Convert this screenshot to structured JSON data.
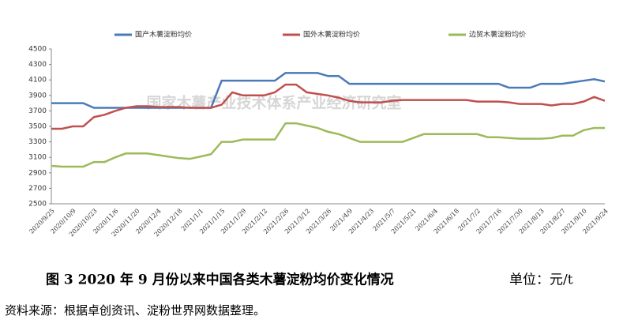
{
  "chart_data": {
    "type": "line",
    "annotation": "国家木薯产业技术体系产业经济研究室",
    "caption": "图 3   2020 年 9 月份以来中国各类木薯淀粉均价变化情况",
    "unit": "单位：元/t",
    "source": "资料来源：根据卓创资讯、淀粉世界网数据整理。",
    "categories": [
      "2020/9/25",
      null,
      "2020/10/9",
      null,
      "2020/10/23",
      null,
      "2020/11/6",
      null,
      "2020/11/20",
      null,
      "2020/12/4",
      null,
      "2020/12/18",
      null,
      "2021/1/1",
      null,
      "2021/1/15",
      null,
      "2021/1/29",
      null,
      "2021/2/12",
      null,
      "2021/2/26",
      null,
      "2021/3/12",
      null,
      "2021/3/26",
      null,
      "2021/4/9",
      null,
      "2021/4/23",
      null,
      "2021/5/7",
      null,
      "2021/5/21",
      null,
      "2021/6/4",
      null,
      "2021/6/18",
      null,
      "2021/7/2",
      null,
      "2021/7/16",
      null,
      "2021/7/30",
      null,
      "2021/8/13",
      null,
      "2021/8/27",
      null,
      "2021/9/10",
      null,
      "2021/9/24"
    ],
    "series": [
      {
        "name": "国产木薯淀粉均价",
        "color": "#4a7ab8",
        "values": [
          3800,
          3800,
          3800,
          3800,
          3740,
          3740,
          3740,
          3740,
          3740,
          3740,
          3740,
          3740,
          3740,
          3740,
          3740,
          3740,
          4090,
          4090,
          4090,
          4090,
          4090,
          4090,
          4190,
          4190,
          4190,
          4190,
          4150,
          4150,
          4050,
          4050,
          4050,
          4050,
          4050,
          4050,
          4050,
          4050,
          4050,
          4050,
          4050,
          4050,
          4050,
          4050,
          4050,
          4000,
          4000,
          4000,
          4050,
          4050,
          4050,
          4070,
          4090,
          4110,
          4080
        ]
      },
      {
        "name": "国外木薯淀粉均价",
        "color": "#c0504d",
        "values": [
          3470,
          3470,
          3500,
          3500,
          3620,
          3650,
          3700,
          3740,
          3760,
          3760,
          3750,
          3750,
          3750,
          3740,
          3740,
          3740,
          3780,
          3940,
          3900,
          3900,
          3900,
          3940,
          4040,
          4040,
          3940,
          3920,
          3900,
          3870,
          3830,
          3810,
          3810,
          3810,
          3830,
          3840,
          3840,
          3840,
          3840,
          3840,
          3840,
          3840,
          3820,
          3820,
          3820,
          3810,
          3790,
          3790,
          3790,
          3770,
          3790,
          3790,
          3820,
          3880,
          3830
        ]
      },
      {
        "name": "边贸木薯淀粉均价",
        "color": "#9bbb59",
        "values": [
          2990,
          2980,
          2980,
          2980,
          3040,
          3040,
          3100,
          3150,
          3150,
          3150,
          3130,
          3110,
          3090,
          3080,
          3110,
          3140,
          3300,
          3300,
          3330,
          3330,
          3330,
          3330,
          3540,
          3540,
          3510,
          3480,
          3430,
          3400,
          3350,
          3300,
          3300,
          3300,
          3300,
          3300,
          3350,
          3400,
          3400,
          3400,
          3400,
          3400,
          3400,
          3360,
          3360,
          3350,
          3340,
          3340,
          3340,
          3350,
          3380,
          3380,
          3450,
          3480,
          3480
        ]
      }
    ],
    "ylim": [
      2500,
      4500
    ],
    "yticks": [
      2500,
      2700,
      2900,
      3100,
      3300,
      3500,
      3700,
      3900,
      4100,
      4300,
      4500
    ],
    "grid": false,
    "legend": "top"
  }
}
